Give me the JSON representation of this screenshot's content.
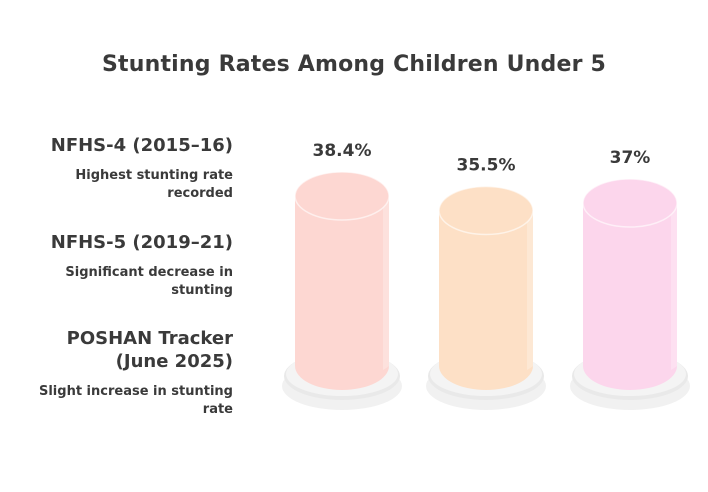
{
  "chart_data": {
    "type": "bar",
    "title": "Stunting Rates Among Children Under 5",
    "categories": [
      "NFHS-4 (2015–16)",
      "NFHS-5 (2019–21)",
      "POSHAN Tracker (June 2025)"
    ],
    "descriptions": [
      "Highest stunting rate recorded",
      "Significant decrease in stunting",
      "Slight increase in stunting rate"
    ],
    "values": [
      38.4,
      35.5,
      37
    ],
    "value_labels": [
      "38.4%",
      "35.5%",
      "37%"
    ],
    "unit": "%",
    "colors": [
      "#fdd7d2",
      "#fde0c6",
      "#fcd6ec"
    ],
    "xlabel": "",
    "ylabel": ""
  },
  "legend": [
    {
      "title_line1": "NFHS-4 (2015–16)",
      "title_line2": "",
      "desc_line1": "Highest stunting rate",
      "desc_line2": "recorded"
    },
    {
      "title_line1": "NFHS-5 (2019–21)",
      "title_line2": "",
      "desc_line1": "Significant decrease in",
      "desc_line2": "stunting"
    },
    {
      "title_line1": "POSHAN Tracker",
      "title_line2": "(June 2025)",
      "desc_line1": "Slight increase in stunting",
      "desc_line2": "rate"
    }
  ]
}
